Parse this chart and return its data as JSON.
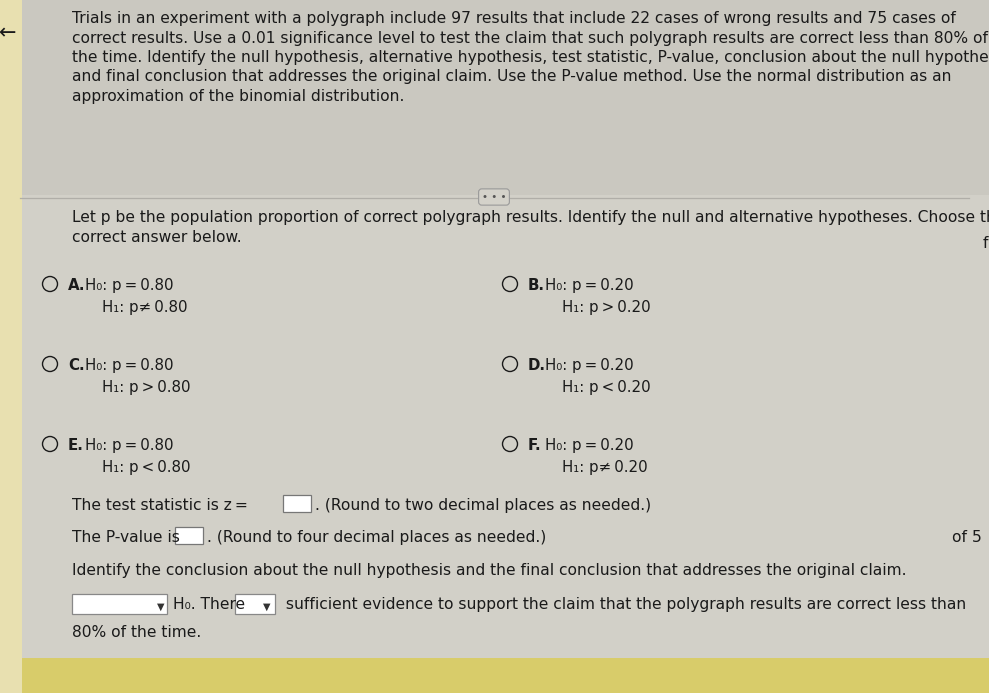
{
  "bg_color": "#d2d0c8",
  "top_bg_color": "#cac8c0",
  "white_bg_color": "#e8e6de",
  "font_color": "#1a1a1a",
  "top_text_lines": [
    "Trials in an experiment with a polygraph include 97 results that include 22 cases of wrong results and 75 cases of",
    "correct results. Use a 0.01 significance level to test the claim that such polygraph results are correct less than 80% of",
    "the time. Identify the null hypothesis, alternative hypothesis, test statistic, P-value, conclusion about the null hypothesis,",
    "and final conclusion that addresses the original claim. Use the P-value method. Use the normal distribution as an",
    "approximation of the binomial distribution."
  ],
  "let_p_lines": [
    "Let p be the population proportion of correct polygraph results. Identify the null and alternative hypotheses. Choose the",
    "correct answer below."
  ],
  "options": [
    {
      "label": "A.",
      "h0": "H₀: p = 0.80",
      "h1": "H₁: p≠ 0.80"
    },
    {
      "label": "B.",
      "h0": "H₀: p = 0.20",
      "h1": "H₁: p > 0.20"
    },
    {
      "label": "C.",
      "h0": "H₀: p = 0.80",
      "h1": "H₁: p > 0.80"
    },
    {
      "label": "D.",
      "h0": "H₀: p = 0.20",
      "h1": "H₁: p < 0.20"
    },
    {
      "label": "E.",
      "h0": "H₀: p = 0.80",
      "h1": "H₁: p < 0.80"
    },
    {
      "label": "F.",
      "h0": "H₀: p = 0.20",
      "h1": "H₁: p≠ 0.20"
    }
  ],
  "test_stat_text": "The test statistic is z =",
  "test_stat_suffix": ". (Round to two decimal places as needed.)",
  "pvalue_text": "The P-value is",
  "pvalue_suffix": ". (Round to four decimal places as needed.)",
  "of5_text": "of 5",
  "identify_text": "Identify the conclusion about the null hypothesis and the final conclusion that addresses the original claim.",
  "conclusion_suffix": " sufficient evidence to support the claim that the polygraph results are correct less than",
  "conclusion_h0": "H₀. There",
  "conclusion_last": "80% of the time.",
  "separator_color": "#b0aea8",
  "yellow_color": "#d8cc6a",
  "left_side_color": "#e8e0b0"
}
